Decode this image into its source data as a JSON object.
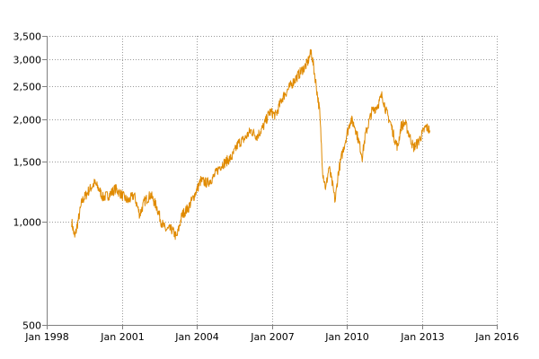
{
  "chart_data": {
    "type": "line",
    "title": "",
    "xlabel": "",
    "ylabel": "",
    "y_scale": "log",
    "grid": true,
    "legend": "none",
    "x_range": [
      "1998-01-01",
      "2016-01-01"
    ],
    "y_range": [
      500,
      3500
    ],
    "x_ticks": [
      {
        "label": "Jan 1998",
        "date": "1998-01-01"
      },
      {
        "label": "Jan 2001",
        "date": "2001-01-01"
      },
      {
        "label": "Jan 2004",
        "date": "2004-01-01"
      },
      {
        "label": "Jan 2007",
        "date": "2007-01-01"
      },
      {
        "label": "Jan 2010",
        "date": "2010-01-01"
      },
      {
        "label": "Jan 2013",
        "date": "2013-01-01"
      },
      {
        "label": "Jan 2016",
        "date": "2016-01-01"
      }
    ],
    "y_ticks": [
      {
        "label": "3,500",
        "value": 3500
      },
      {
        "label": "3,000",
        "value": 3000
      },
      {
        "label": "2,500",
        "value": 2500
      },
      {
        "label": "2,000",
        "value": 2000
      },
      {
        "label": "1,500",
        "value": 1500
      },
      {
        "label": "1,000",
        "value": 1000
      },
      {
        "label": "500",
        "value": 500
      }
    ],
    "series": [
      {
        "color": "#e08a00",
        "points": [
          [
            "1999-01-01",
            1000
          ],
          [
            "1999-02-15",
            900
          ],
          [
            "1999-04-01",
            1000
          ],
          [
            "1999-06-01",
            1150
          ],
          [
            "1999-09-01",
            1230
          ],
          [
            "1999-12-01",
            1300
          ],
          [
            "2000-02-01",
            1250
          ],
          [
            "2000-04-01",
            1180
          ],
          [
            "2000-07-01",
            1200
          ],
          [
            "2000-10-01",
            1250
          ],
          [
            "2001-01-01",
            1200
          ],
          [
            "2001-04-01",
            1150
          ],
          [
            "2001-07-01",
            1200
          ],
          [
            "2001-09-20",
            1050
          ],
          [
            "2001-12-01",
            1150
          ],
          [
            "2002-03-01",
            1200
          ],
          [
            "2002-06-01",
            1100
          ],
          [
            "2002-08-01",
            1000
          ],
          [
            "2002-10-01",
            950
          ],
          [
            "2003-01-01",
            950
          ],
          [
            "2003-03-15",
            900
          ],
          [
            "2003-06-01",
            1050
          ],
          [
            "2003-09-01",
            1100
          ],
          [
            "2003-12-01",
            1200
          ],
          [
            "2004-03-01",
            1320
          ],
          [
            "2004-06-01",
            1300
          ],
          [
            "2004-09-01",
            1350
          ],
          [
            "2004-12-01",
            1450
          ],
          [
            "2005-03-01",
            1500
          ],
          [
            "2005-06-01",
            1550
          ],
          [
            "2005-09-01",
            1700
          ],
          [
            "2005-12-01",
            1750
          ],
          [
            "2006-03-01",
            1850
          ],
          [
            "2006-06-01",
            1780
          ],
          [
            "2006-09-01",
            1900
          ],
          [
            "2006-12-01",
            2100
          ],
          [
            "2007-03-01",
            2050
          ],
          [
            "2007-06-01",
            2300
          ],
          [
            "2007-09-01",
            2450
          ],
          [
            "2007-12-01",
            2600
          ],
          [
            "2008-03-01",
            2750
          ],
          [
            "2008-06-01",
            2900
          ],
          [
            "2008-08-01",
            3150
          ],
          [
            "2008-10-01",
            2600
          ],
          [
            "2008-12-01",
            2100
          ],
          [
            "2009-01-15",
            1400
          ],
          [
            "2009-03-01",
            1250
          ],
          [
            "2009-04-15",
            1450
          ],
          [
            "2009-06-01",
            1300
          ],
          [
            "2009-07-15",
            1150
          ],
          [
            "2009-09-01",
            1400
          ],
          [
            "2009-11-01",
            1600
          ],
          [
            "2010-01-01",
            1800
          ],
          [
            "2010-03-01",
            2000
          ],
          [
            "2010-05-01",
            1900
          ],
          [
            "2010-07-01",
            1700
          ],
          [
            "2010-08-15",
            1550
          ],
          [
            "2010-10-01",
            1800
          ],
          [
            "2011-01-01",
            2100
          ],
          [
            "2011-04-01",
            2200
          ],
          [
            "2011-06-01",
            2350
          ],
          [
            "2011-08-01",
            2100
          ],
          [
            "2011-10-01",
            1950
          ],
          [
            "2011-12-01",
            1750
          ],
          [
            "2012-01-15",
            1650
          ],
          [
            "2012-03-01",
            1900
          ],
          [
            "2012-05-01",
            1950
          ],
          [
            "2012-07-01",
            1800
          ],
          [
            "2012-09-01",
            1650
          ],
          [
            "2012-11-01",
            1700
          ],
          [
            "2013-01-01",
            1800
          ],
          [
            "2013-03-01",
            1900
          ],
          [
            "2013-05-01",
            1850
          ]
        ]
      }
    ]
  }
}
